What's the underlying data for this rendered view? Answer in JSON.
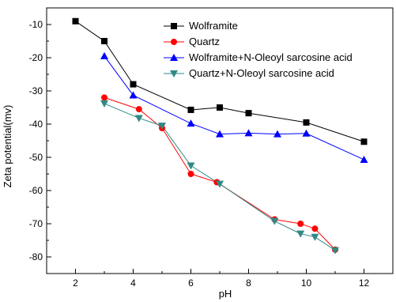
{
  "chart_data": {
    "type": "line",
    "title": "",
    "xlabel": "pH",
    "ylabel": "Zeta potential(mv)",
    "xlim": [
      1,
      13
    ],
    "ylim": [
      -85,
      -5
    ],
    "xticks": [
      2,
      4,
      6,
      8,
      10,
      12
    ],
    "yticks": [
      -10,
      -20,
      -30,
      -40,
      -50,
      -60,
      -70,
      -80
    ],
    "grid": false,
    "legend_position": "top-right",
    "series": [
      {
        "name": "Wolframite",
        "color": "#000000",
        "marker": "square",
        "x": [
          2.0,
          3.0,
          4.0,
          6.0,
          7.0,
          8.0,
          10.0,
          12.0
        ],
        "y": [
          -9.0,
          -15.0,
          -28.0,
          -35.7,
          -35.0,
          -36.7,
          -39.5,
          -45.3
        ]
      },
      {
        "name": "Quartz",
        "color": "#ff0000",
        "marker": "circle",
        "x": [
          3.0,
          4.2,
          5.0,
          6.0,
          6.9,
          8.9,
          9.8,
          10.3,
          11.0
        ],
        "y": [
          -32.0,
          -35.5,
          -41.2,
          -55.0,
          -57.5,
          -68.7,
          -70.0,
          -71.5,
          -77.8
        ]
      },
      {
        "name": "Wolframite+N-Oleoyl sarcosine acid",
        "color": "#0000ff",
        "marker": "triangle-up",
        "x": [
          3.0,
          4.0,
          6.0,
          7.0,
          8.0,
          9.0,
          10.0,
          12.0
        ],
        "y": [
          -19.5,
          -31.3,
          -39.8,
          -43.0,
          -42.7,
          -43.0,
          -42.8,
          -50.7
        ]
      },
      {
        "name": "Quartz+N-Oleoyl sarcosine acid",
        "color": "#2f8a84",
        "marker": "triangle-down",
        "x": [
          3.0,
          4.2,
          5.0,
          6.0,
          7.0,
          8.9,
          9.8,
          10.3,
          11.0
        ],
        "y": [
          -33.8,
          -38.2,
          -40.5,
          -52.5,
          -58.0,
          -69.2,
          -73.0,
          -74.0,
          -78.0
        ]
      }
    ]
  }
}
